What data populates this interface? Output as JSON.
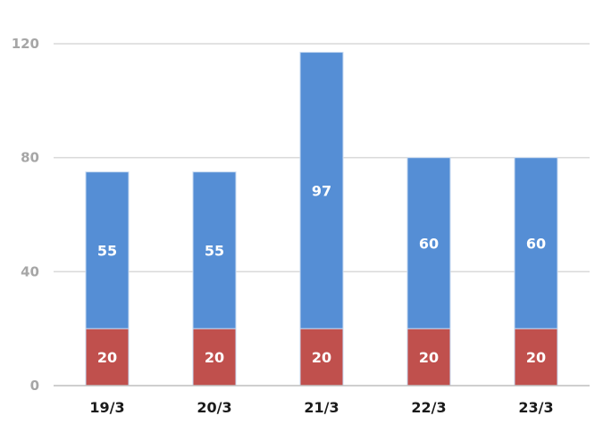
{
  "chart_data": {
    "type": "bar",
    "stacked": true,
    "categories": [
      "19/3",
      "20/3",
      "21/3",
      "22/3",
      "23/3"
    ],
    "series": [
      {
        "values": [
          20,
          20,
          20,
          20,
          20
        ],
        "color": "#c0504d"
      },
      {
        "values": [
          55,
          55,
          97,
          60,
          60
        ],
        "color": "#558ed5"
      }
    ],
    "ylim": [
      0,
      120
    ],
    "yticks": [
      0,
      40,
      80,
      120
    ],
    "grid": true,
    "legend": "none",
    "title": "",
    "xlabel": "",
    "ylabel": ""
  }
}
